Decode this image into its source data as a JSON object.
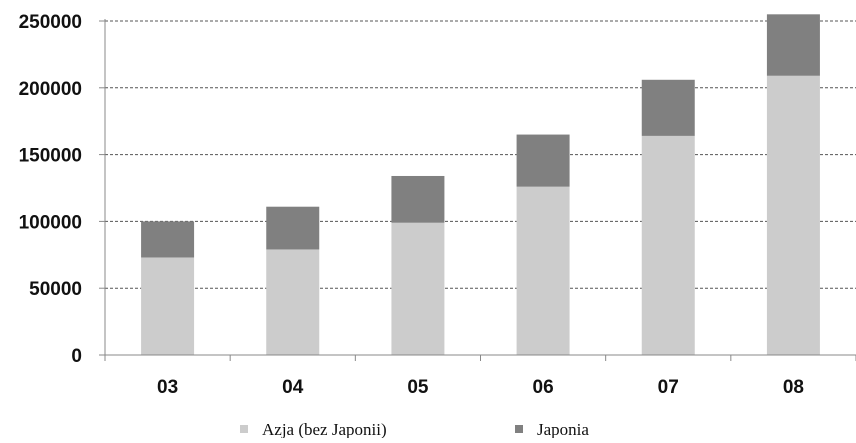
{
  "chart_data": {
    "type": "bar",
    "stacked": true,
    "categories": [
      "03",
      "04",
      "05",
      "06",
      "07",
      "08"
    ],
    "series": [
      {
        "name": "Azja (bez Japonii)",
        "values": [
          73000,
          79000,
          99000,
          126000,
          164000,
          209000
        ],
        "color": "#cccccc"
      },
      {
        "name": "Japonia",
        "values": [
          27000,
          32000,
          35000,
          39000,
          42000,
          46000
        ],
        "color": "#808080"
      }
    ],
    "ylim": [
      0,
      250000
    ],
    "yticks": [
      "0",
      "50000",
      "100000",
      "150000",
      "200000",
      "250000"
    ],
    "grid": "horizontal dashed",
    "legend": "bottom-center",
    "title": "",
    "xlabel": "",
    "ylabel": ""
  }
}
